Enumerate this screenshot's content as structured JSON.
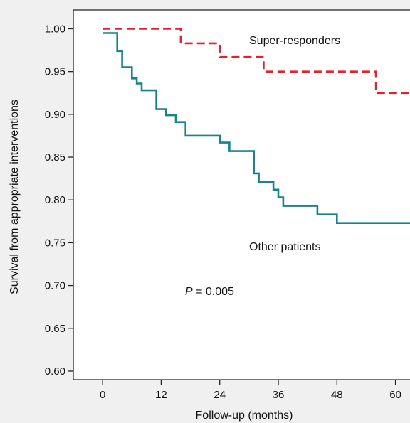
{
  "chart_data": {
    "type": "line",
    "title": "",
    "xlabel": "Follow-up (months)",
    "ylabel": "Survival from appropriate interventions",
    "xlim": [
      -6,
      64
    ],
    "ylim": [
      0.59,
      1.022
    ],
    "x_ticks": [
      0,
      12,
      24,
      36,
      48,
      60
    ],
    "x_tick_labels": [
      "0",
      "12",
      "24",
      "36",
      "48",
      "60"
    ],
    "y_ticks": [
      1.0,
      0.95,
      0.9,
      0.85,
      0.8,
      0.75,
      0.7,
      0.65,
      0.6
    ],
    "y_tick_labels": [
      "1.00",
      "0.95",
      "0.90",
      "0.85",
      "0.80",
      "0.75",
      "0.70",
      "0.65",
      "0.60"
    ],
    "grid": false,
    "step": true,
    "series": [
      {
        "name": "Super-responders",
        "color": "#e0242f",
        "style": "dashed",
        "points": [
          [
            0,
            1.0
          ],
          [
            16,
            1.0
          ],
          [
            16,
            0.983
          ],
          [
            24,
            0.983
          ],
          [
            24,
            0.967
          ],
          [
            33,
            0.967
          ],
          [
            33,
            0.95
          ],
          [
            56,
            0.95
          ],
          [
            56,
            0.925
          ],
          [
            64,
            0.925
          ]
        ]
      },
      {
        "name": "Other patients",
        "color": "#16848e",
        "style": "solid",
        "points": [
          [
            0,
            0.995
          ],
          [
            3,
            0.995
          ],
          [
            3,
            0.974
          ],
          [
            4,
            0.974
          ],
          [
            4,
            0.955
          ],
          [
            6,
            0.955
          ],
          [
            6,
            0.942
          ],
          [
            7,
            0.942
          ],
          [
            7,
            0.936
          ],
          [
            8,
            0.936
          ],
          [
            8,
            0.928
          ],
          [
            11,
            0.928
          ],
          [
            11,
            0.906
          ],
          [
            13,
            0.906
          ],
          [
            13,
            0.899
          ],
          [
            15,
            0.899
          ],
          [
            15,
            0.891
          ],
          [
            17,
            0.891
          ],
          [
            17,
            0.875
          ],
          [
            24,
            0.875
          ],
          [
            24,
            0.867
          ],
          [
            26,
            0.867
          ],
          [
            26,
            0.857
          ],
          [
            31,
            0.857
          ],
          [
            31,
            0.831
          ],
          [
            32,
            0.831
          ],
          [
            32,
            0.821
          ],
          [
            35,
            0.821
          ],
          [
            35,
            0.812
          ],
          [
            36,
            0.812
          ],
          [
            36,
            0.803
          ],
          [
            37,
            0.803
          ],
          [
            37,
            0.793
          ],
          [
            44,
            0.793
          ],
          [
            44,
            0.783
          ],
          [
            48,
            0.783
          ],
          [
            48,
            0.773
          ],
          [
            64,
            0.773
          ]
        ]
      }
    ],
    "annotations": {
      "super": "Super-responders",
      "other": "Other patients",
      "p_symbol": "P",
      "p_rest": " = 0.005"
    }
  }
}
